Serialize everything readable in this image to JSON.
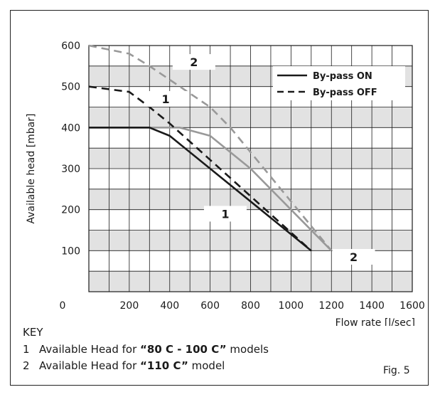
{
  "chart_data": {
    "type": "line",
    "ylabel": "Available head [mbar]",
    "xlabel": "Flow rate [l/sec]",
    "xlim": [
      0,
      1600
    ],
    "ylim": [
      0,
      600
    ],
    "x_ticks": [
      "0",
      "200",
      "400",
      "600",
      "800",
      "1000",
      "1200",
      "1400",
      "1600"
    ],
    "y_ticks": [
      "100",
      "200",
      "300",
      "400",
      "500",
      "600"
    ],
    "grid": true,
    "legend": {
      "position": "top-right",
      "entries": [
        {
          "label": "By-pass ON",
          "style": "solid"
        },
        {
          "label": "By-pass OFF",
          "style": "dashed"
        }
      ]
    },
    "series": [
      {
        "model": "1",
        "bypass": "ON",
        "color": "#1a1a1a",
        "dash": false,
        "x": [
          0,
          300,
          400,
          1100
        ],
        "y": [
          400,
          400,
          380,
          100
        ]
      },
      {
        "model": "1",
        "bypass": "OFF",
        "color": "#1a1a1a",
        "dash": true,
        "x": [
          0,
          200,
          300,
          400,
          1100
        ],
        "y": [
          500,
          487,
          450,
          410,
          100
        ]
      },
      {
        "model": "2",
        "bypass": "ON",
        "color": "#999999",
        "dash": false,
        "x": [
          0,
          300,
          450,
          600,
          800,
          1200
        ],
        "y": [
          400,
          400,
          400,
          380,
          300,
          100
        ]
      },
      {
        "model": "2",
        "bypass": "OFF",
        "color": "#999999",
        "dash": true,
        "x": [
          0,
          200,
          300,
          450,
          600,
          700,
          1200
        ],
        "y": [
          600,
          580,
          550,
          500,
          450,
          400,
          100
        ]
      }
    ],
    "labels": [
      {
        "text": "2",
        "x": 520,
        "y": 560
      },
      {
        "text": "1",
        "x": 380,
        "y": 470
      },
      {
        "text": "1",
        "x": 675,
        "y": 190
      },
      {
        "text": "2",
        "x": 1310,
        "y": 85
      }
    ]
  },
  "key": {
    "title": "KEY",
    "items": [
      {
        "num": "1",
        "pre": "Available Head for ",
        "bold": "“80 C - 100 C”",
        "post": " models"
      },
      {
        "num": "2",
        "pre": "Available Head for ",
        "bold": "“110 C”",
        "post": " model"
      }
    ]
  },
  "figure_label": "Fig. 5"
}
